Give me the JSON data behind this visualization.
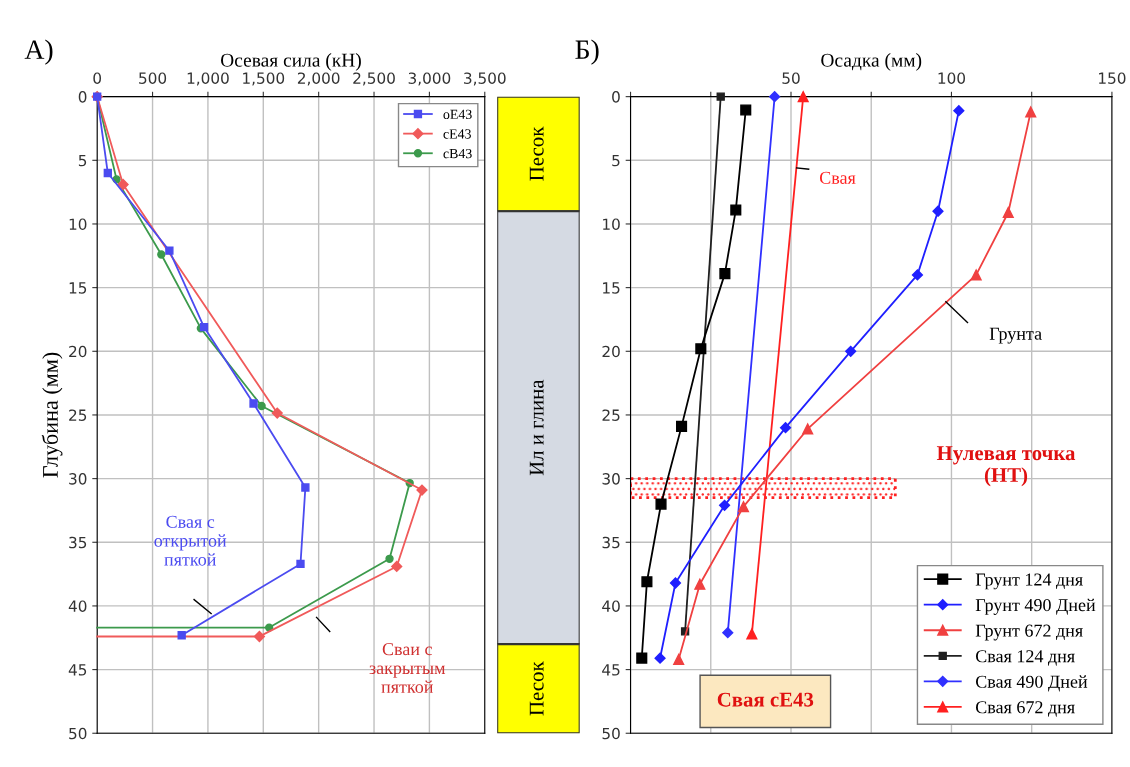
{
  "chart_data": [
    {
      "type": "line",
      "xlabel": "Осевая сила (кН)",
      "ylabel": "Глубина (мм)",
      "annotations": [
        "А)",
        "Свая с\nоткрытой\nпяткой",
        "Сваи с\nзакрытым\nпяткой"
      ],
      "xlim": [
        0,
        3500
      ],
      "xticks": [
        0,
        500,
        {
          "value": 1000,
          "label": "1,000"
        },
        {
          "value": 1500,
          "label": "1,500"
        },
        {
          "value": 2000,
          "label": "2,000"
        },
        {
          "value": 2500,
          "label": "2,500"
        },
        {
          "value": 3000,
          "label": "3,000"
        },
        {
          "value": 3500,
          "label": "3,500"
        }
      ],
      "ylim": [
        50,
        0
      ],
      "yticks": [
        0,
        5,
        10,
        15,
        20,
        25,
        30,
        35,
        40,
        45,
        50
      ],
      "grid": true,
      "legend": "top right",
      "series": [
        {
          "name": "oE43",
          "color": "#4b4bf0",
          "marker": "square",
          "x": [
            0,
            96,
            652,
            965,
            1412,
            1880,
            1836,
            763
          ],
          "values": [
            0,
            6.0,
            12.1,
            18.1,
            24.1,
            30.7,
            36.7,
            42.3
          ]
        },
        {
          "name": "cE43",
          "color": "#f05a5a",
          "marker": "diamond",
          "x": [
            0,
            234,
            1626,
            2933,
            2705,
            1465
          ],
          "values": [
            0,
            6.9,
            24.85,
            30.9,
            36.9,
            42.4
          ]
        },
        {
          "name": "cB43",
          "color": "#3c9a4c",
          "marker": "circle",
          "x": [
            0,
            175,
            579,
            936,
            1485,
            2822,
            2640,
            1553
          ],
          "values": [
            0,
            6.5,
            12.4,
            18.2,
            24.3,
            30.35,
            36.3,
            41.7
          ]
        },
        {
          "color": "#f05a5a",
          "marker": "none",
          "x": [
            1465,
            0
          ],
          "values": [
            42.4,
            42.4
          ]
        },
        {
          "color": "#3c9a4c",
          "marker": "none",
          "x": [
            1553,
            0
          ],
          "values": [
            41.7,
            41.7
          ]
        }
      ]
    },
    {
      "type": "other",
      "annotations": [
        "Песок",
        "Ил и глина",
        "Песок"
      ]
    },
    {
      "type": "line",
      "xlabel": "Осадка (мм)",
      "annotations": [
        "Б)",
        "Свая",
        "Грунта",
        "Нулевая точка\n(НТ)",
        "Свая cE43"
      ],
      "xlim": [
        0,
        150
      ],
      "xticks": [
        {
          "value": 0,
          "label": null
        },
        {
          "value": 25,
          "label": null
        },
        50,
        {
          "value": 75,
          "label": null
        },
        100,
        {
          "value": 125,
          "label": null
        },
        150
      ],
      "ylim": [
        50,
        0
      ],
      "yticks": [
        0,
        5,
        10,
        15,
        20,
        25,
        30,
        35,
        40,
        45,
        50
      ],
      "grid": true,
      "legend": "bottom right",
      "bands": [
        {
          "axis": "y",
          "from": 30,
          "to": 31.5,
          "color": "#ff2020"
        }
      ],
      "series": [
        {
          "name": "Грунт 124 дня",
          "color": "#000000",
          "marker": "square",
          "x": [
            35.9,
            32.8,
            29.4,
            21.9,
            15.9,
            9.5,
            5.1,
            3.5
          ],
          "values": [
            1.05,
            8.9,
            13.9,
            19.8,
            25.9,
            32.0,
            38.1,
            44.1
          ]
        },
        {
          "name": "Грунт 490 Дней",
          "color": "#1f1fff",
          "marker": "diamond",
          "x": [
            102.3,
            95.8,
            89.4,
            68.6,
            48.3,
            29.3,
            14.0,
            9.2
          ],
          "values": [
            1.1,
            9.0,
            14.0,
            20.0,
            26.0,
            32.1,
            38.2,
            44.1
          ]
        },
        {
          "name": "Грунт 672 дня",
          "color": "#f04040",
          "marker": "triangle",
          "x": [
            124.7,
            117.7,
            107.7,
            55.2,
            35.2,
            21.6,
            15.0
          ],
          "values": [
            1.2,
            9.1,
            14.0,
            26.1,
            32.2,
            38.3,
            44.2
          ]
        },
        {
          "name": "Свая 124 дня",
          "color": "#202020",
          "marker": "square",
          "x": [
            28.1,
            17.0
          ],
          "values": [
            0,
            42.0
          ]
        },
        {
          "name": "Свая 490 Дней",
          "color": "#3030ff",
          "marker": "diamond",
          "x": [
            44.9,
            30.3
          ],
          "values": [
            0,
            42.1
          ]
        },
        {
          "name": "Свая 672 дня",
          "color": "#ff2020",
          "marker": "triangle",
          "x": [
            53.8,
            37.8
          ],
          "values": [
            0,
            42.2
          ]
        }
      ]
    }
  ]
}
